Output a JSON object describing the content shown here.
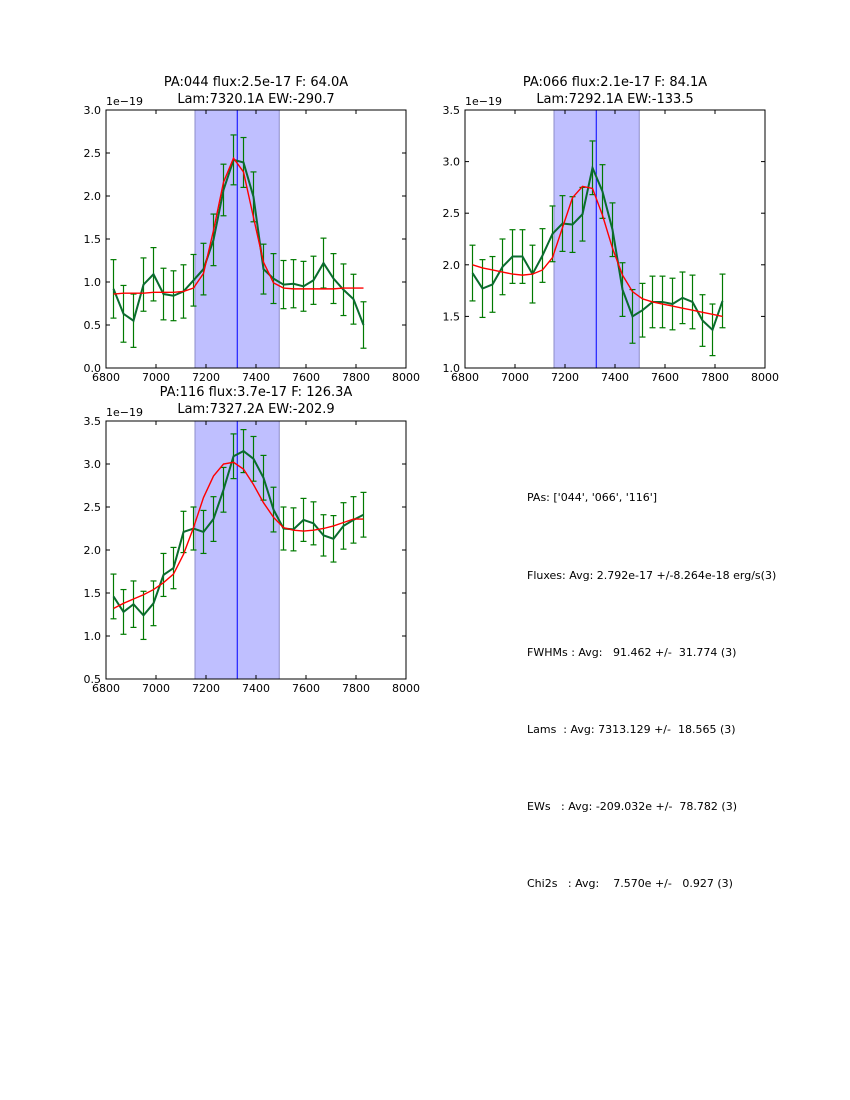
{
  "colors": {
    "data_line": "#0b6b2e",
    "errorbar": "#007a00",
    "model_line": "#ff0000",
    "span_fill": "#bfbfff",
    "span_edge": "#8c8cc8",
    "center_line": "#0000ff"
  },
  "chart_data": [
    {
      "type": "line",
      "title": "PA:044 flux:2.5e-17 F: 64.0A\nLam:7320.1A EW:-290.7",
      "title_lines": [
        "PA:044 flux:2.5e-17 F: 64.0A",
        "Lam:7320.1A EW:-290.7"
      ],
      "offset_label": "1e−19",
      "xlabel": "",
      "ylabel": "",
      "xlim": [
        6800,
        8000
      ],
      "ylim": [
        0.0,
        3.0
      ],
      "xticks": [
        "6800",
        "7000",
        "7200",
        "7400",
        "7600",
        "7800",
        "8000"
      ],
      "yticks": [
        "0.0",
        "0.5",
        "1.0",
        "1.5",
        "2.0",
        "2.5",
        "3.0"
      ],
      "span": [
        7156,
        7493
      ],
      "center_line": 7325,
      "x": [
        6830,
        6870,
        6910,
        6950,
        6990,
        7030,
        7070,
        7110,
        7150,
        7190,
        7230,
        7270,
        7310,
        7350,
        7390,
        7430,
        7470,
        7510,
        7550,
        7590,
        7630,
        7670,
        7710,
        7750,
        7790,
        7830
      ],
      "series": [
        {
          "name": "data",
          "style": "errorbar",
          "values": [
            0.92,
            0.63,
            0.55,
            0.97,
            1.09,
            0.86,
            0.84,
            0.89,
            1.02,
            1.15,
            1.49,
            2.07,
            2.42,
            2.39,
            1.99,
            1.15,
            1.04,
            0.97,
            0.98,
            0.95,
            1.02,
            1.22,
            1.04,
            0.91,
            0.8,
            0.5
          ],
          "errors": [
            0.34,
            0.33,
            0.31,
            0.31,
            0.31,
            0.3,
            0.29,
            0.31,
            0.3,
            0.3,
            0.3,
            0.3,
            0.29,
            0.29,
            0.29,
            0.29,
            0.29,
            0.28,
            0.28,
            0.29,
            0.28,
            0.29,
            0.29,
            0.3,
            0.29,
            0.27
          ]
        },
        {
          "name": "model",
          "style": "line",
          "values": [
            0.86,
            0.87,
            0.87,
            0.87,
            0.88,
            0.88,
            0.88,
            0.89,
            0.93,
            1.1,
            1.6,
            2.16,
            2.44,
            2.28,
            1.75,
            1.23,
            0.99,
            0.93,
            0.92,
            0.92,
            0.92,
            0.92,
            0.92,
            0.93,
            0.93,
            0.93
          ]
        }
      ]
    },
    {
      "type": "line",
      "title": "PA:066 flux:2.1e-17 F: 84.1A\nLam:7292.1A EW:-133.5",
      "title_lines": [
        "PA:066 flux:2.1e-17 F: 84.1A",
        "Lam:7292.1A EW:-133.5"
      ],
      "offset_label": "1e−19",
      "xlabel": "",
      "ylabel": "",
      "xlim": [
        6800,
        8000
      ],
      "ylim": [
        1.0,
        3.5
      ],
      "xticks": [
        "6800",
        "7000",
        "7200",
        "7400",
        "7600",
        "7800",
        "8000"
      ],
      "yticks": [
        "1.0",
        "1.5",
        "2.0",
        "2.5",
        "3.0",
        "3.5"
      ],
      "span": [
        7156,
        7497
      ],
      "center_line": 7325,
      "x": [
        6830,
        6870,
        6910,
        6950,
        6990,
        7030,
        7070,
        7110,
        7150,
        7190,
        7230,
        7270,
        7310,
        7350,
        7390,
        7430,
        7470,
        7510,
        7550,
        7590,
        7630,
        7670,
        7710,
        7750,
        7790,
        7830
      ],
      "series": [
        {
          "name": "data",
          "style": "errorbar",
          "values": [
            1.92,
            1.77,
            1.81,
            1.98,
            2.08,
            2.08,
            1.91,
            2.09,
            2.3,
            2.4,
            2.39,
            2.49,
            2.94,
            2.71,
            2.34,
            1.76,
            1.5,
            1.56,
            1.64,
            1.64,
            1.62,
            1.68,
            1.64,
            1.46,
            1.37,
            1.65
          ],
          "errors": [
            0.27,
            0.28,
            0.27,
            0.27,
            0.26,
            0.26,
            0.28,
            0.26,
            0.27,
            0.27,
            0.27,
            0.26,
            0.26,
            0.26,
            0.26,
            0.26,
            0.26,
            0.26,
            0.25,
            0.25,
            0.25,
            0.25,
            0.26,
            0.25,
            0.25,
            0.26
          ]
        },
        {
          "name": "model",
          "style": "line",
          "values": [
            2.0,
            1.97,
            1.95,
            1.93,
            1.91,
            1.9,
            1.91,
            1.95,
            2.07,
            2.36,
            2.65,
            2.76,
            2.74,
            2.48,
            2.16,
            1.9,
            1.74,
            1.67,
            1.64,
            1.62,
            1.6,
            1.58,
            1.56,
            1.54,
            1.52,
            1.5
          ]
        }
      ]
    },
    {
      "type": "line",
      "title": "PA:116 flux:3.7e-17 F: 126.3A\nLam:7327.2A EW:-202.9",
      "title_lines": [
        "PA:116 flux:3.7e-17 F: 126.3A",
        "Lam:7327.2A EW:-202.9"
      ],
      "offset_label": "1e−19",
      "xlabel": "",
      "ylabel": "",
      "xlim": [
        6800,
        8000
      ],
      "ylim": [
        0.5,
        3.5
      ],
      "xticks": [
        "6800",
        "7000",
        "7200",
        "7400",
        "7600",
        "7800",
        "8000"
      ],
      "yticks": [
        "0.5",
        "1.0",
        "1.5",
        "2.0",
        "2.5",
        "3.0",
        "3.5"
      ],
      "span": [
        7156,
        7493
      ],
      "center_line": 7325,
      "x": [
        6830,
        6870,
        6910,
        6950,
        6990,
        7030,
        7070,
        7110,
        7150,
        7190,
        7230,
        7270,
        7310,
        7350,
        7390,
        7430,
        7470,
        7510,
        7550,
        7590,
        7630,
        7670,
        7710,
        7750,
        7790,
        7830
      ],
      "series": [
        {
          "name": "data",
          "style": "errorbar",
          "values": [
            1.46,
            1.28,
            1.37,
            1.24,
            1.38,
            1.71,
            1.79,
            2.21,
            2.25,
            2.21,
            2.36,
            2.7,
            3.09,
            3.15,
            3.06,
            2.84,
            2.47,
            2.25,
            2.24,
            2.35,
            2.31,
            2.17,
            2.13,
            2.28,
            2.35,
            2.41
          ],
          "errors": [
            0.26,
            0.26,
            0.27,
            0.28,
            0.26,
            0.25,
            0.24,
            0.24,
            0.25,
            0.25,
            0.26,
            0.26,
            0.26,
            0.25,
            0.26,
            0.26,
            0.26,
            0.25,
            0.25,
            0.25,
            0.25,
            0.24,
            0.27,
            0.27,
            0.27,
            0.26
          ]
        },
        {
          "name": "model",
          "style": "line",
          "values": [
            1.32,
            1.38,
            1.43,
            1.48,
            1.54,
            1.62,
            1.72,
            1.95,
            2.26,
            2.61,
            2.86,
            3.0,
            3.02,
            2.94,
            2.76,
            2.55,
            2.38,
            2.26,
            2.23,
            2.22,
            2.23,
            2.25,
            2.28,
            2.32,
            2.36,
            2.36
          ]
        }
      ]
    }
  ],
  "stats": {
    "lines": [
      "PAs: ['044', '066', '116']",
      "Fluxes: Avg: 2.792e-17 +/-8.264e-18 erg/s(3)",
      "FWHMs : Avg:   91.462 +/-  31.774 (3)",
      "Lams  : Avg: 7313.129 +/-  18.565 (3)",
      "EWs   : Avg: -209.032e +/-  78.782 (3)",
      "Chi2s   : Avg:    7.570e +/-   0.927 (3)"
    ]
  }
}
